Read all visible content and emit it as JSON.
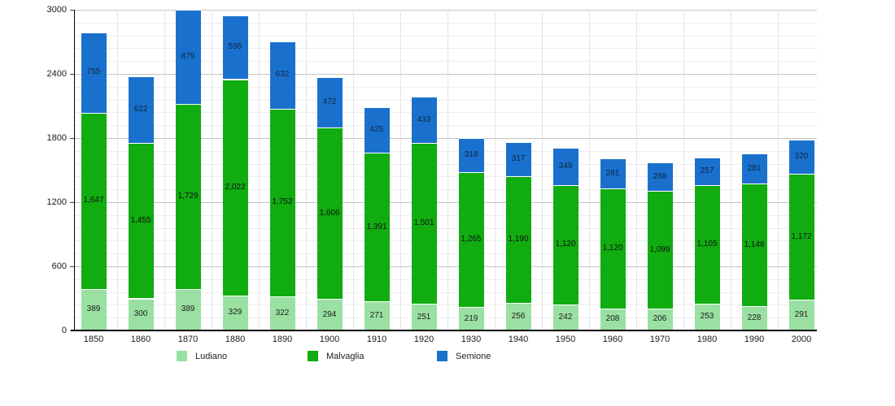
{
  "chart_data": {
    "type": "bar",
    "stacked": true,
    "title": "",
    "xlabel": "",
    "ylabel": "",
    "categories": [
      "1850",
      "1860",
      "1870",
      "1880",
      "1890",
      "1900",
      "1910",
      "1920",
      "1930",
      "1940",
      "1950",
      "1960",
      "1970",
      "1980",
      "1990",
      "2000"
    ],
    "series": [
      {
        "name": "Ludiano",
        "color": "#9ae0a2",
        "label_color": "#1c1c1c",
        "values": [
          389,
          300,
          389,
          329,
          322,
          294,
          271,
          251,
          219,
          256,
          242,
          208,
          206,
          253,
          228,
          291
        ]
      },
      {
        "name": "Malvaglia",
        "color": "#10ac10",
        "label_color": "#111111",
        "values": [
          1647,
          1455,
          1729,
          2022,
          1752,
          1606,
          1391,
          1501,
          1265,
          1190,
          1120,
          1120,
          1099,
          1105,
          1146,
          1172
        ]
      },
      {
        "name": "Semione",
        "color": "#1a71cd",
        "label_color": "#0e2440",
        "values": [
          755,
          622,
          879,
          595,
          632,
          472,
          425,
          433,
          318,
          317,
          349,
          281,
          268,
          257,
          281,
          320
        ]
      }
    ],
    "ylim": [
      0,
      3000
    ],
    "y_ticks": [
      0,
      600,
      1200,
      1800,
      2400,
      3000
    ],
    "grid": {
      "minor_step": 120,
      "major_step": 600,
      "show": true
    },
    "legend_position": "bottom",
    "value_labels": "shown-inside-segments, thousands separated with comma"
  }
}
